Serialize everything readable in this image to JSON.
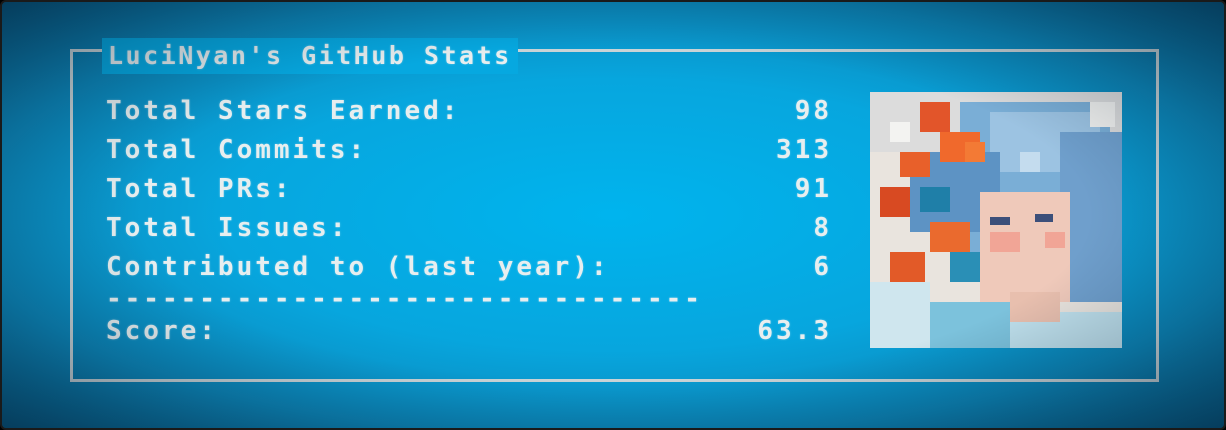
{
  "card": {
    "title": "LuciNyan's GitHub Stats",
    "stats": [
      {
        "label": "Total Stars Earned:",
        "value": "98"
      },
      {
        "label": "Total Commits:",
        "value": "313"
      },
      {
        "label": "Total PRs:",
        "value": "91"
      },
      {
        "label": "Total Issues:",
        "value": "8"
      },
      {
        "label": "Contributed to (last year):",
        "value": "6"
      }
    ],
    "divider": "--------------------------------",
    "score": {
      "label": "Score:",
      "value": "63.3"
    }
  },
  "colors": {
    "background": "#07a6de",
    "text": "#e7eeef",
    "frame": "#c9d3d6"
  },
  "avatar": {
    "icon": "pixel-art-avatar-icon"
  }
}
